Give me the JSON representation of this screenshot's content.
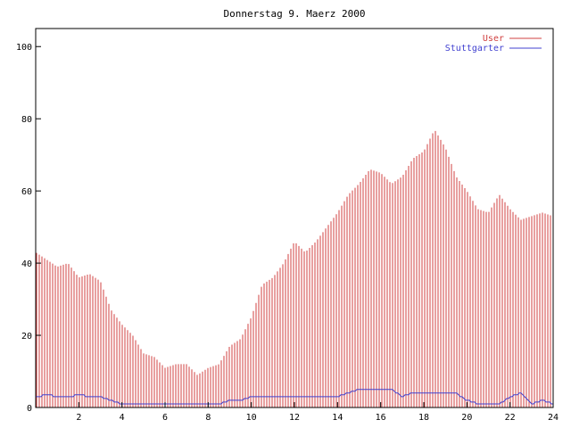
{
  "chart_data": {
    "type": "bar",
    "title": "Donnerstag 9. Maerz 2000",
    "xlim": [
      0,
      24
    ],
    "ylim": [
      0,
      105
    ],
    "xticks": [
      2,
      4,
      6,
      8,
      10,
      12,
      14,
      16,
      18,
      20,
      22,
      24
    ],
    "yticks": [
      0,
      20,
      40,
      60,
      80,
      100
    ],
    "legend_position": "top-right",
    "series": [
      {
        "name": "User",
        "type": "bar",
        "color": "#d04040",
        "x": [
          0,
          0.5,
          1,
          1.5,
          2,
          2.5,
          3,
          3.5,
          4,
          4.5,
          5,
          5.5,
          6,
          6.5,
          7,
          7.5,
          8,
          8.5,
          9,
          9.5,
          10,
          10.5,
          11,
          11.5,
          12,
          12.5,
          13,
          13.5,
          14,
          14.5,
          15,
          15.5,
          16,
          16.5,
          17,
          17.5,
          18,
          18.5,
          19,
          19.5,
          20,
          20.5,
          21,
          21.5,
          22,
          22.5,
          23,
          23.5,
          24
        ],
        "values": [
          43,
          41,
          39,
          40,
          36,
          37,
          35,
          27,
          23,
          20,
          15,
          14,
          11,
          12,
          12,
          9,
          11,
          12,
          17,
          19,
          25,
          34,
          36,
          40,
          46,
          43,
          46,
          50,
          54,
          59,
          62,
          66,
          65,
          62,
          64,
          69,
          71,
          77,
          72,
          64,
          60,
          55,
          54,
          59,
          55,
          52,
          53,
          54,
          53
        ]
      },
      {
        "name": "Stuttgarter",
        "type": "line",
        "color": "#4040d0",
        "x": [
          0,
          0.5,
          1,
          1.5,
          2,
          2.5,
          3,
          3.5,
          4,
          4.5,
          5,
          5.5,
          6,
          6.5,
          7,
          7.5,
          8,
          8.5,
          9,
          9.5,
          10,
          10.5,
          11,
          11.5,
          12,
          12.5,
          13,
          13.5,
          14,
          14.5,
          15,
          15.5,
          16,
          16.5,
          17,
          17.5,
          18,
          18.5,
          19,
          19.5,
          20,
          20.5,
          21,
          21.5,
          22,
          22.5,
          23,
          23.5,
          24
        ],
        "values": [
          3,
          3.5,
          3,
          3,
          3.5,
          3,
          3,
          2,
          1,
          1,
          1,
          1,
          1,
          1,
          1,
          1,
          1,
          1,
          2,
          2,
          3,
          3,
          3,
          3,
          3,
          3,
          3,
          3,
          3,
          4,
          5,
          5,
          5,
          5,
          3,
          4,
          4,
          4,
          4,
          4,
          2,
          1,
          1,
          1,
          3,
          4,
          1,
          2,
          1
        ]
      }
    ]
  }
}
